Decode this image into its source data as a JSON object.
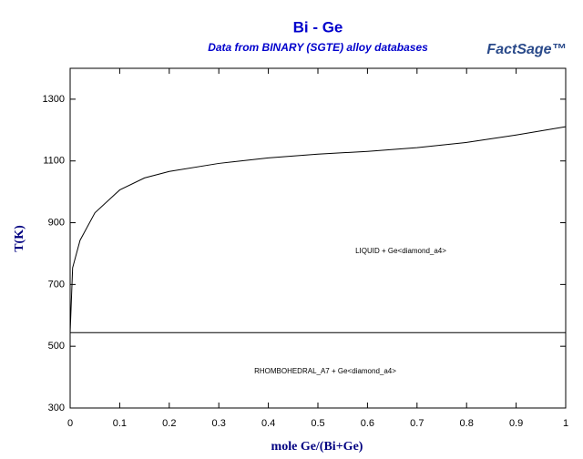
{
  "chart_data": {
    "type": "line",
    "title": "Bi - Ge",
    "subtitle": "Data from BINARY (SGTE) alloy databases",
    "logo": "FactSage™",
    "x_label": "mole Ge/(Bi+Ge)",
    "y_label": "T(K)",
    "xlim": [
      0,
      1
    ],
    "ylim": [
      300,
      1400
    ],
    "xticks": [
      0,
      0.1,
      0.2,
      0.3,
      0.4,
      0.5,
      0.6,
      0.7,
      0.8,
      0.9,
      1
    ],
    "yticks": [
      300,
      500,
      700,
      900,
      1100,
      1300
    ],
    "series": [
      {
        "color": "#000000",
        "x": [
          0,
          0.005,
          0.02,
          0.05,
          0.1,
          0.15,
          0.2,
          0.3,
          0.4,
          0.5,
          0.6,
          0.7,
          0.8,
          0.9,
          1.0
        ],
        "values": [
          544,
          754,
          843,
          932,
          1006,
          1045,
          1066,
          1092,
          1110,
          1122,
          1131,
          1143,
          1160,
          1184,
          1211
        ]
      },
      {
        "color": "#000000",
        "x": [
          0,
          1
        ],
        "values": [
          544,
          544
        ]
      }
    ],
    "annotations": [
      "LIQUID + Ge<diamond_a4>",
      "RHOMBOHEDRAL_A7 + Ge<diamond_a4>"
    ]
  }
}
